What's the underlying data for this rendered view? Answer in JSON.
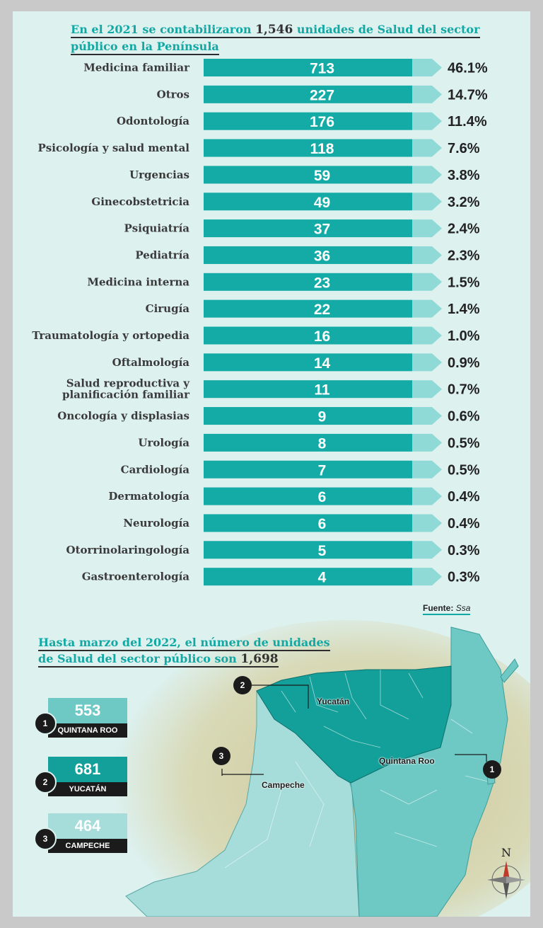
{
  "titles": {
    "top_part1": "En el 2021 se contabilizaron",
    "top_number": "1,546",
    "top_part2": "unidades de Salud del sector",
    "top_line2": "público en la Península",
    "bottom_line1": "Hasta marzo del 2022, el número de unidades",
    "bottom_part1": "de Salud del sector público son",
    "bottom_number": "1,698"
  },
  "source": {
    "label": "Fuente:",
    "name": "Ssa"
  },
  "colors": {
    "bar": "#14aaa5",
    "arrow": "#8fdad6",
    "yucatan": "#14a09a",
    "quintana_roo": "#6ec9c5",
    "campeche": "#a6dcd9"
  },
  "chart_data": {
    "type": "bar",
    "orientation": "horizontal",
    "title": "En el 2021 se contabilizaron 1,546 unidades de Salud del sector público en la Península",
    "categories": [
      "Medicina familiar",
      "Otros",
      "Odontología",
      "Psicología y salud mental",
      "Urgencias",
      "Ginecobstetricia",
      "Psiquiatría",
      "Pediatría",
      "Medicina interna",
      "Cirugía",
      "Traumatología y ortopedia",
      "Oftalmología",
      "Salud reproductiva y planificación familiar",
      "Oncología y displasias",
      "Urología",
      "Cardiología",
      "Dermatología",
      "Neurología",
      "Otorrinolaringología",
      "Gastroenterología"
    ],
    "values": [
      713,
      227,
      176,
      118,
      59,
      49,
      37,
      36,
      23,
      22,
      16,
      14,
      11,
      9,
      8,
      7,
      6,
      6,
      5,
      4
    ],
    "percent_labels": [
      "46.1%",
      "14.7%",
      "11.4%",
      "7.6%",
      "3.8%",
      "3.2%",
      "2.4%",
      "2.3%",
      "1.5%",
      "1.4%",
      "1.0%",
      "0.9%",
      "0.7%",
      "0.6%",
      "0.5%",
      "0.5%",
      "0.4%",
      "0.4%",
      "0.3%",
      "0.3%"
    ]
  },
  "legend": [
    {
      "num": "1",
      "value": "553",
      "name": "QUINTANA ROO",
      "color": "#6ec9c5"
    },
    {
      "num": "2",
      "value": "681",
      "name": "YUCATÁN",
      "color": "#14a09a"
    },
    {
      "num": "3",
      "value": "464",
      "name": "CAMPECHE",
      "color": "#a6dcd9"
    }
  ],
  "map": {
    "yucatan": "Yucatán",
    "quintana_roo": "Quintana Roo",
    "campeche": "Campeche",
    "num_yucatan": "2",
    "num_quintana_roo": "1",
    "num_campeche": "3",
    "compass": "N"
  }
}
